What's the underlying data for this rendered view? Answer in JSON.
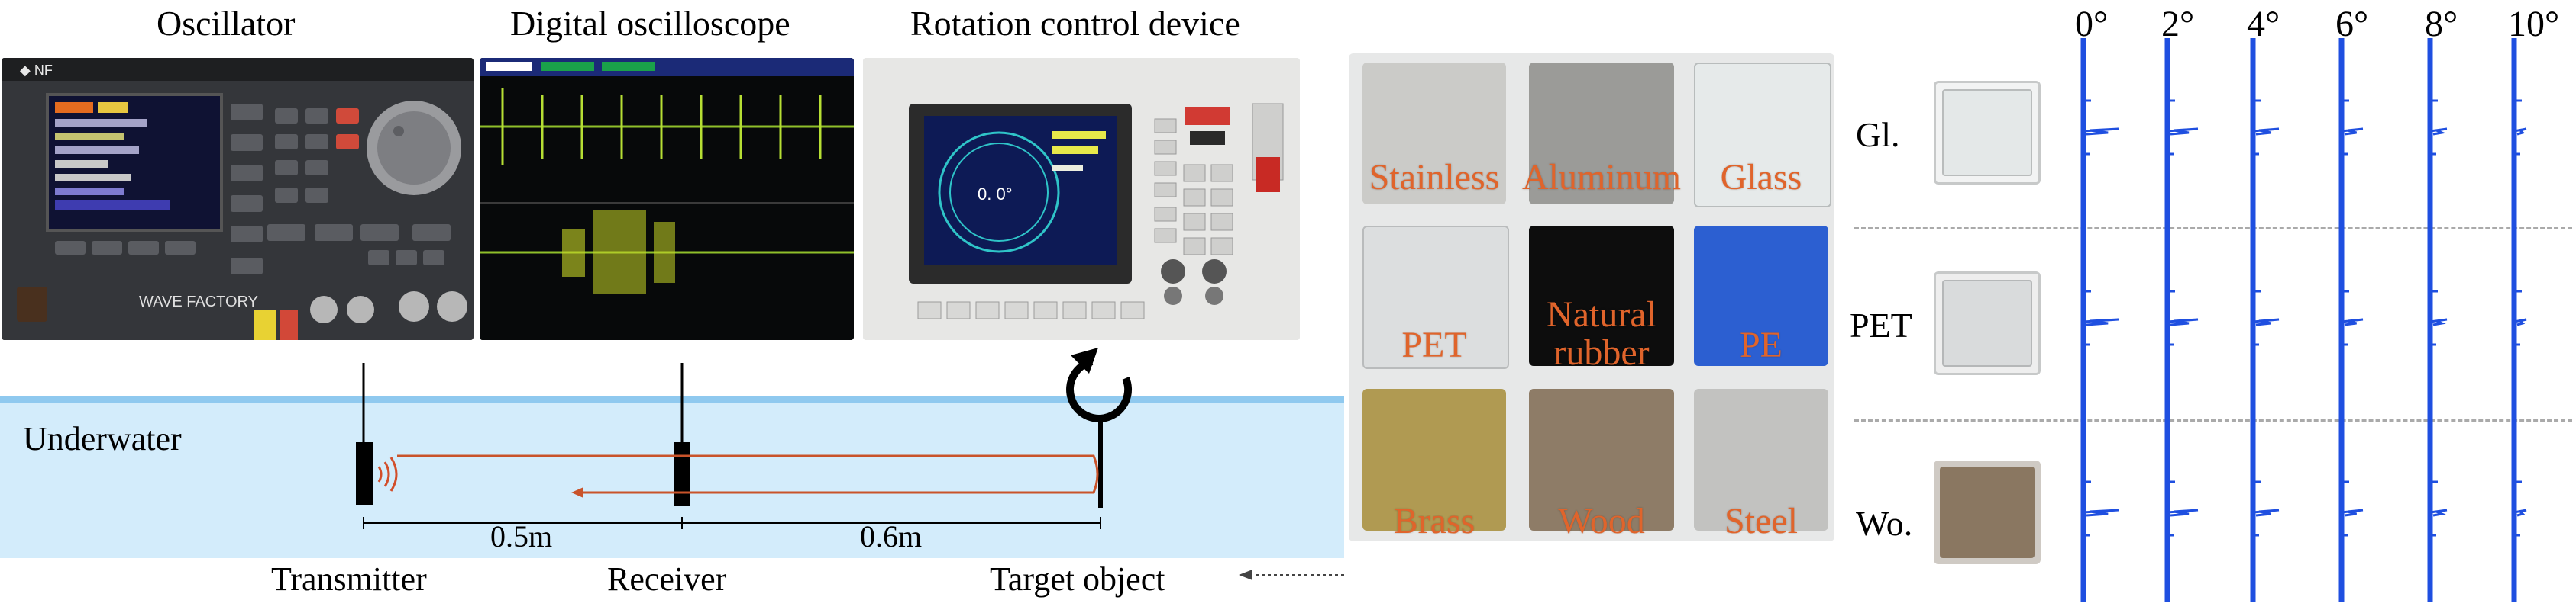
{
  "equipment": {
    "oscillator_title": "Oscillator",
    "oscilloscope_title": "Digital oscilloscope",
    "rotation_title": "Rotation control device"
  },
  "setup": {
    "medium": "Underwater",
    "distance_1": "0.5m",
    "distance_2": "0.6m",
    "transmitter": "Transmitter",
    "receiver": "Receiver",
    "target": "Target object",
    "water_color": "#d3ecfb",
    "beam_color": "#c9532a"
  },
  "materials": [
    {
      "name": "Stainless",
      "color": "#c9c9c6"
    },
    {
      "name": "Aluminum",
      "color": "#9a9a97"
    },
    {
      "name": "Glass",
      "color": "#e6eaea"
    },
    {
      "name": "PET",
      "color": "#dcdedf"
    },
    {
      "name": "Natural rubber",
      "color": "#0d0d0d"
    },
    {
      "name": "PE",
      "color": "#2c5fd1"
    },
    {
      "name": "Brass",
      "color": "#b09a52"
    },
    {
      "name": "Wood",
      "color": "#8e7c67"
    },
    {
      "name": "Steel",
      "color": "#c2c2c0"
    }
  ],
  "waveforms": {
    "angles": [
      "0°",
      "2°",
      "4°",
      "6°",
      "8°",
      "10°"
    ],
    "rows": [
      {
        "label": "Gl.",
        "swatch": "#e4e8e8"
      },
      {
        "label": "PET",
        "swatch": "#d9dbdc"
      },
      {
        "label": "Wo.",
        "swatch": "#8a7761"
      }
    ],
    "trace_color": "#1f4fe0"
  }
}
